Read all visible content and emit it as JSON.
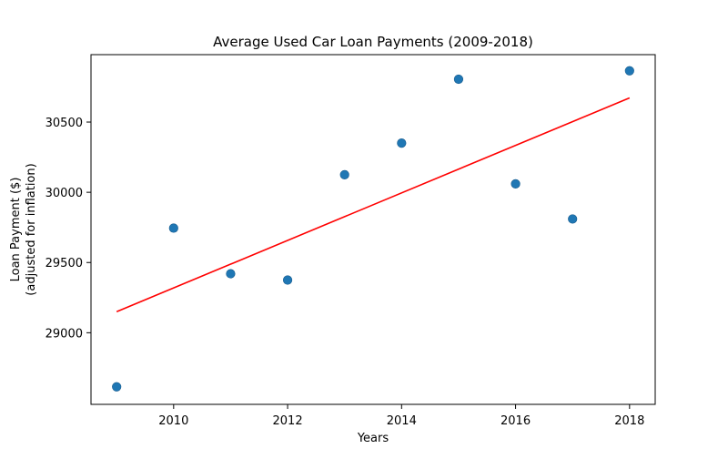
{
  "chart_data": {
    "type": "scatter",
    "title": "Average Used Car Loan Payments (2009-2018)",
    "xlabel": "Years",
    "ylabel": [
      "Loan Payment ($)",
      "(adjusted for inflation)"
    ],
    "xlim": [
      2008.55,
      2018.45
    ],
    "ylim": [
      28490,
      30980
    ],
    "xticks": [
      2010,
      2012,
      2014,
      2016,
      2018
    ],
    "yticks": [
      29000,
      29500,
      30000,
      30500
    ],
    "grid": false,
    "legend": "none",
    "points": {
      "x": [
        2009,
        2010,
        2011,
        2012,
        2013,
        2014,
        2015,
        2016,
        2017,
        2018
      ],
      "y": [
        28615,
        29745,
        29420,
        29375,
        30125,
        30350,
        30805,
        30060,
        29810,
        30865
      ],
      "color": "#1f77b4"
    },
    "trendline": {
      "x": [
        2009,
        2018
      ],
      "y": [
        29150,
        30672
      ],
      "color": "#ff0000"
    }
  }
}
